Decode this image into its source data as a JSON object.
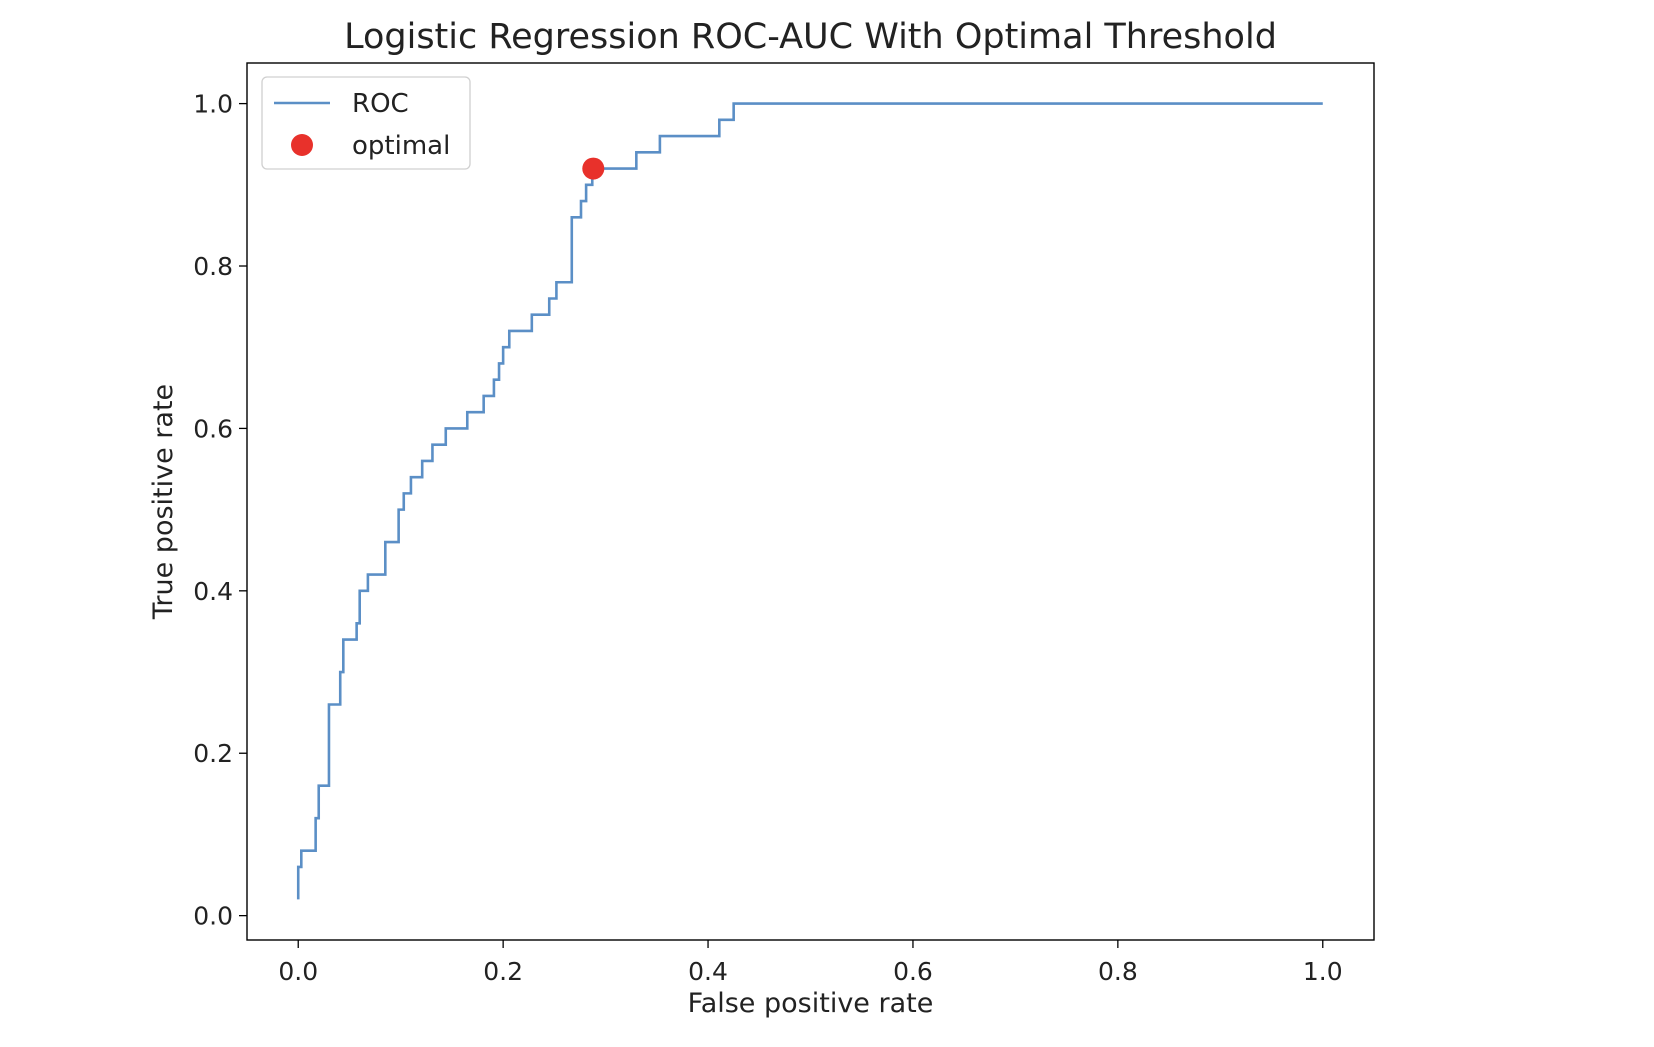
{
  "chart_data": {
    "type": "line",
    "title": "Logistic Regression ROC-AUC With Optimal Threshold",
    "xlabel": "False positive rate",
    "ylabel": "True positive rate",
    "xlim": [
      -0.05,
      1.05
    ],
    "ylim": [
      -0.03,
      1.05
    ],
    "xticks": [
      0.0,
      0.2,
      0.4,
      0.6,
      0.8,
      1.0
    ],
    "xtick_labels": [
      "0.0",
      "0.2",
      "0.4",
      "0.6",
      "0.8",
      "1.0"
    ],
    "yticks": [
      0.0,
      0.2,
      0.4,
      0.6,
      0.8,
      1.0
    ],
    "ytick_labels": [
      "0.0",
      "0.2",
      "0.4",
      "0.6",
      "0.8",
      "1.0"
    ],
    "grid": false,
    "legend_position": "upper-left",
    "series": [
      {
        "name": "ROC",
        "kind": "line",
        "color": "#5b8fc6",
        "x": [
          0,
          0,
          0.003,
          0.003,
          0.017,
          0.017,
          0.02,
          0.02,
          0.03,
          0.03,
          0.03,
          0.041,
          0.041,
          0.044,
          0.044,
          0.057,
          0.057,
          0.06,
          0.06,
          0.068,
          0.068,
          0.085,
          0.085,
          0.098,
          0.098,
          0.103,
          0.103,
          0.11,
          0.11,
          0.121,
          0.121,
          0.131,
          0.131,
          0.144,
          0.144,
          0.165,
          0.165,
          0.181,
          0.181,
          0.191,
          0.191,
          0.196,
          0.196,
          0.2,
          0.2,
          0.206,
          0.206,
          0.228,
          0.228,
          0.245,
          0.245,
          0.252,
          0.252,
          0.267,
          0.267,
          0.276,
          0.276,
          0.281,
          0.281,
          0.287,
          0.287,
          0.33,
          0.33,
          0.353,
          0.353,
          0.411,
          0.411,
          0.425,
          0.425,
          1.0
        ],
        "y": [
          0.02,
          0.06,
          0.06,
          0.08,
          0.08,
          0.12,
          0.12,
          0.16,
          0.16,
          0.2,
          0.26,
          0.26,
          0.3,
          0.3,
          0.34,
          0.34,
          0.36,
          0.36,
          0.4,
          0.4,
          0.42,
          0.42,
          0.46,
          0.46,
          0.5,
          0.5,
          0.52,
          0.52,
          0.54,
          0.54,
          0.56,
          0.56,
          0.58,
          0.58,
          0.6,
          0.6,
          0.62,
          0.62,
          0.64,
          0.64,
          0.66,
          0.66,
          0.68,
          0.68,
          0.7,
          0.7,
          0.72,
          0.72,
          0.74,
          0.74,
          0.76,
          0.76,
          0.78,
          0.78,
          0.86,
          0.86,
          0.88,
          0.88,
          0.9,
          0.9,
          0.92,
          0.92,
          0.94,
          0.94,
          0.96,
          0.96,
          0.98,
          0.98,
          1.0,
          1.0
        ]
      },
      {
        "name": "optimal",
        "kind": "scatter",
        "color": "#e8312b",
        "x": [
          0.288
        ],
        "y": [
          0.92
        ]
      }
    ]
  }
}
